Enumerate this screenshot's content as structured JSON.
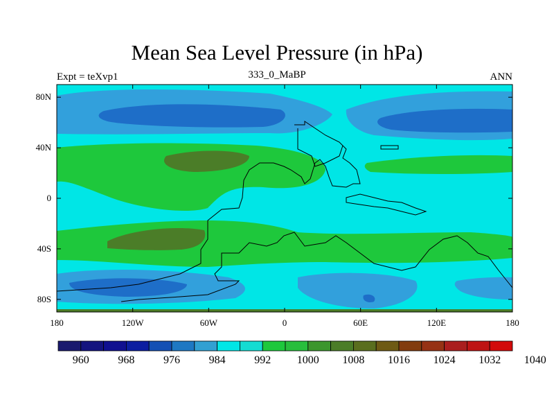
{
  "title": "Mean Sea Level Pressure (in hPa)",
  "subtitle_left": "Expt = teXvp1",
  "subtitle_center": "333_0_MaBP",
  "subtitle_right": "ANN",
  "y_ticks": [
    "80N",
    "40N",
    "0",
    "40S",
    "80S"
  ],
  "x_ticks": [
    "180",
    "120W",
    "60W",
    "0",
    "60E",
    "120E",
    "180"
  ],
  "colorbar": {
    "labels": [
      "960",
      "968",
      "976",
      "984",
      "992",
      "1000",
      "1008",
      "1016",
      "1024",
      "1032",
      "1040"
    ],
    "colors": [
      "#1a1a6e",
      "#14147f",
      "#101090",
      "#0c1ea0",
      "#1450b4",
      "#1e78c3",
      "#32a0d2",
      "#00e6e6",
      "#14dcd2",
      "#1ec83c",
      "#28be3c",
      "#3c962d",
      "#4b7d28",
      "#5a6e1e",
      "#6e5a14",
      "#823c0f",
      "#963214",
      "#aa1e1e",
      "#be1414",
      "#d20a0a"
    ]
  },
  "field_colors": {
    "low_deep": "#1e6ec8",
    "low": "#32a0dc",
    "mid": "#00e6e6",
    "high": "#1ec83c",
    "very_high": "#4b7d28"
  }
}
